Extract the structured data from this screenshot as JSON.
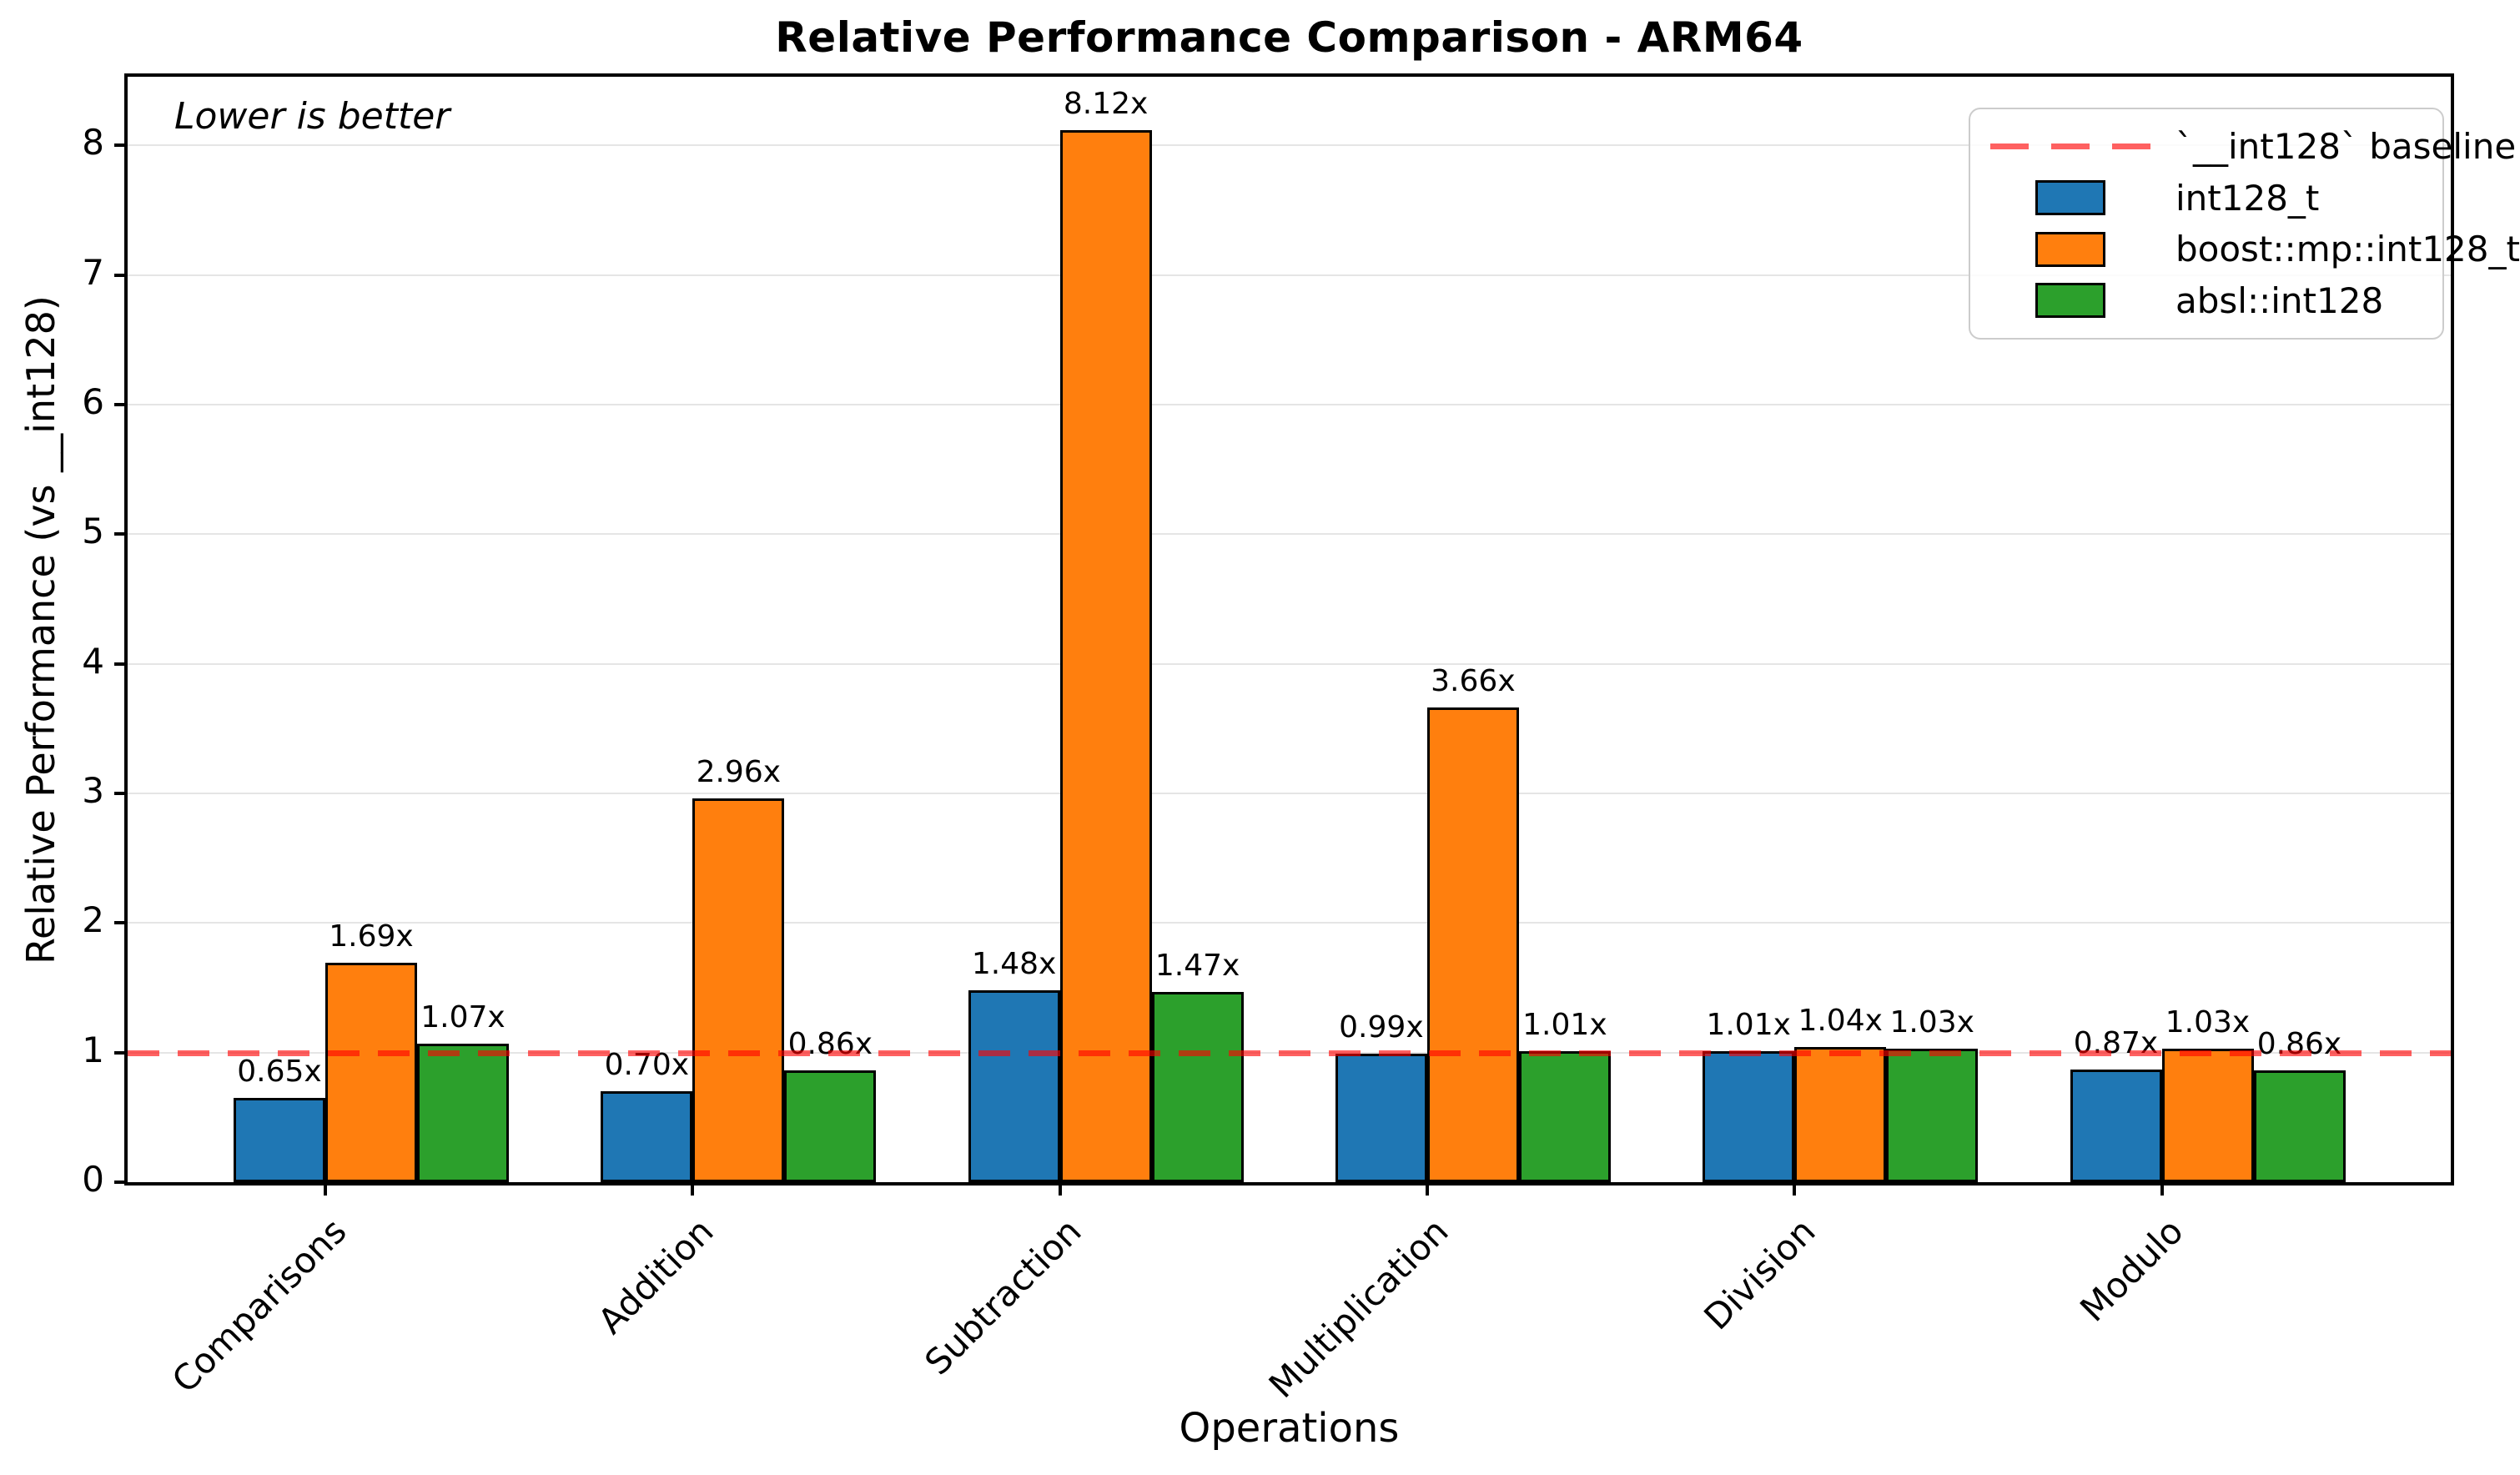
{
  "title": "Relative Performance Comparison - ARM64",
  "annotation": "Lower is better",
  "axes": {
    "xlabel": "Operations",
    "ylabel": "Relative Performance (vs __int128)"
  },
  "legend": {
    "position": "upper right",
    "baseline": {
      "label": "`__int128` baseline",
      "color": "rgba(255,0,0,0.62)",
      "style": "dashed"
    },
    "entries": [
      {
        "label": "int128_t",
        "color": "#1f77b4"
      },
      {
        "label": "boost::mp::int128_t",
        "color": "#ff7f0e"
      },
      {
        "label": "absl::int128",
        "color": "#2ca02c"
      }
    ]
  },
  "chart_data": {
    "type": "bar",
    "title": "Relative Performance Comparison - ARM64",
    "xlabel": "Operations",
    "ylabel": "Relative Performance (vs __int128)",
    "annotation": "Lower is better",
    "categories": [
      "Comparisons",
      "Addition",
      "Subtraction",
      "Multiplication",
      "Division",
      "Modulo"
    ],
    "series": [
      {
        "name": "int128_t",
        "color": "#1f77b4",
        "values": [
          0.65,
          0.7,
          1.48,
          0.99,
          1.01,
          0.87
        ],
        "labels": [
          "0.65x",
          "0.70x",
          "1.48x",
          "0.99x",
          "1.01x",
          "0.87x"
        ]
      },
      {
        "name": "boost::mp::int128_t",
        "color": "#ff7f0e",
        "values": [
          1.69,
          2.96,
          8.12,
          3.66,
          1.04,
          1.03
        ],
        "labels": [
          "1.69x",
          "2.96x",
          "8.12x",
          "3.66x",
          "1.04x",
          "1.03x"
        ]
      },
      {
        "name": "absl::int128",
        "color": "#2ca02c",
        "values": [
          1.07,
          0.86,
          1.47,
          1.01,
          1.03,
          0.86
        ],
        "labels": [
          "1.07x",
          "0.86x",
          "1.47x",
          "1.01x",
          "1.03x",
          "0.86x"
        ]
      }
    ],
    "baseline": {
      "value": 1.0,
      "label": "`__int128` baseline",
      "color": "rgba(255,0,0,0.62)"
    },
    "yticks": [
      0,
      1,
      2,
      3,
      4,
      5,
      6,
      7,
      8
    ],
    "ylim": [
      0,
      8.53
    ],
    "grid": "horizontal",
    "legend_position": "upper right",
    "gridline_color": "#e5e5e5"
  }
}
